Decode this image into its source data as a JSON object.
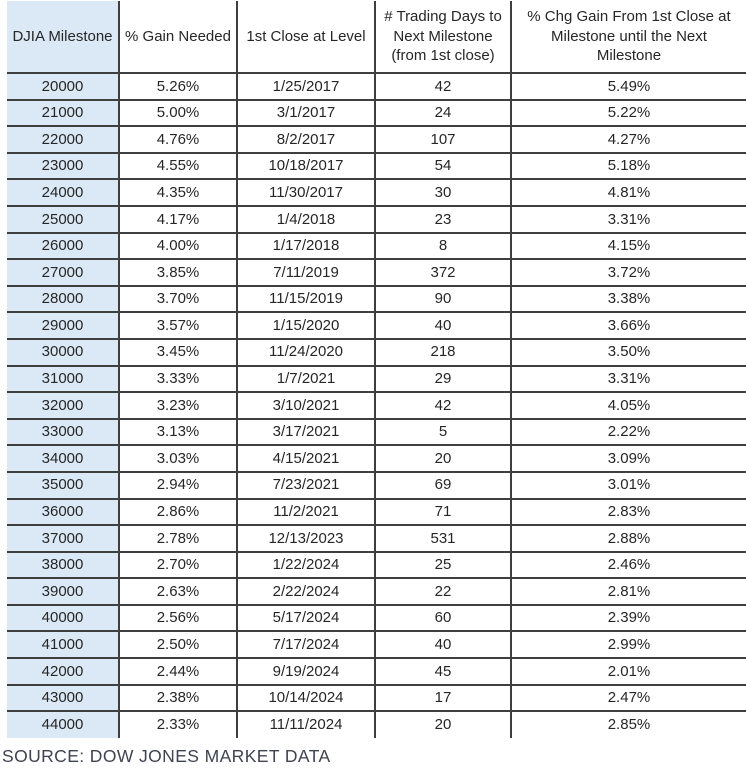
{
  "colors": {
    "first_column_fill": "#dbe9f6",
    "grid_border": "#3f3f3f",
    "cell_text": "#262626",
    "source_text": "#3f4450"
  },
  "chart_data": {
    "type": "table",
    "title": "",
    "columns": [
      "DJIA Milestone",
      "% Gain Needed",
      "1st Close at Level",
      "# Trading Days to\nNext Milestone\n(from 1st close)",
      "% Chg Gain From 1st Close at\nMilestone until the Next\nMilestone"
    ],
    "rows": [
      [
        "20000",
        "5.26%",
        "1/25/2017",
        "42",
        "5.49%"
      ],
      [
        "21000",
        "5.00%",
        "3/1/2017",
        "24",
        "5.22%"
      ],
      [
        "22000",
        "4.76%",
        "8/2/2017",
        "107",
        "4.27%"
      ],
      [
        "23000",
        "4.55%",
        "10/18/2017",
        "54",
        "5.18%"
      ],
      [
        "24000",
        "4.35%",
        "11/30/2017",
        "30",
        "4.81%"
      ],
      [
        "25000",
        "4.17%",
        "1/4/2018",
        "23",
        "3.31%"
      ],
      [
        "26000",
        "4.00%",
        "1/17/2018",
        "8",
        "4.15%"
      ],
      [
        "27000",
        "3.85%",
        "7/11/2019",
        "372",
        "3.72%"
      ],
      [
        "28000",
        "3.70%",
        "11/15/2019",
        "90",
        "3.38%"
      ],
      [
        "29000",
        "3.57%",
        "1/15/2020",
        "40",
        "3.66%"
      ],
      [
        "30000",
        "3.45%",
        "11/24/2020",
        "218",
        "3.50%"
      ],
      [
        "31000",
        "3.33%",
        "1/7/2021",
        "29",
        "3.31%"
      ],
      [
        "32000",
        "3.23%",
        "3/10/2021",
        "42",
        "4.05%"
      ],
      [
        "33000",
        "3.13%",
        "3/17/2021",
        "5",
        "2.22%"
      ],
      [
        "34000",
        "3.03%",
        "4/15/2021",
        "20",
        "3.09%"
      ],
      [
        "35000",
        "2.94%",
        "7/23/2021",
        "69",
        "3.01%"
      ],
      [
        "36000",
        "2.86%",
        "11/2/2021",
        "71",
        "2.83%"
      ],
      [
        "37000",
        "2.78%",
        "12/13/2023",
        "531",
        "2.88%"
      ],
      [
        "38000",
        "2.70%",
        "1/22/2024",
        "25",
        "2.46%"
      ],
      [
        "39000",
        "2.63%",
        "2/22/2024",
        "22",
        "2.81%"
      ],
      [
        "40000",
        "2.56%",
        "5/17/2024",
        "60",
        "2.39%"
      ],
      [
        "41000",
        "2.50%",
        "7/17/2024",
        "40",
        "2.99%"
      ],
      [
        "42000",
        "2.44%",
        "9/19/2024",
        "45",
        "2.01%"
      ],
      [
        "43000",
        "2.38%",
        "10/14/2024",
        "17",
        "2.47%"
      ],
      [
        "44000",
        "2.33%",
        "11/11/2024",
        "20",
        "2.85%"
      ]
    ]
  },
  "footer": {
    "source": "SOURCE: DOW JONES MARKET DATA"
  }
}
